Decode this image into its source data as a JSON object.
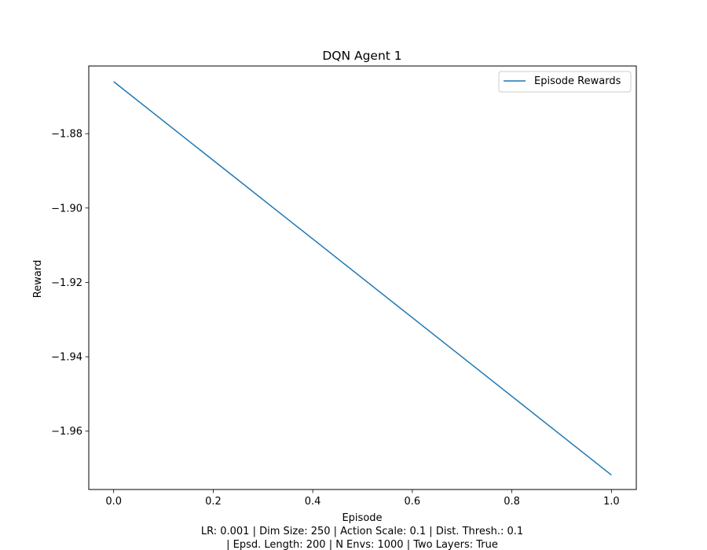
{
  "chart_data": {
    "type": "line",
    "title": "DQN Agent 1",
    "xlabel": "Episode",
    "ylabel": "Reward",
    "xlim": [
      -0.05,
      1.05
    ],
    "ylim": [
      -1.9757,
      -1.8618
    ],
    "x_ticks": [
      0.0,
      0.2,
      0.4,
      0.6,
      0.8,
      1.0
    ],
    "x_tick_labels": [
      "0.0",
      "0.2",
      "0.4",
      "0.6",
      "0.8",
      "1.0"
    ],
    "y_ticks": [
      -1.88,
      -1.9,
      -1.92,
      -1.94,
      -1.96
    ],
    "y_tick_labels": [
      "−1.88",
      "−1.90",
      "−1.92",
      "−1.94",
      "−1.96"
    ],
    "grid": false,
    "legend_position": "upper right",
    "series": [
      {
        "name": "Episode Rewards",
        "color": "#1f77b4",
        "x": [
          0.0,
          1.0
        ],
        "y": [
          -1.866,
          -1.9718
        ]
      }
    ],
    "caption_lines": [
      "LR: 0.001 | Dim Size: 250 | Action Scale: 0.1 | Dist. Thresh.: 0.1",
      "| Epsd. Length: 200 | N Envs: 1000 | Two Layers: True"
    ]
  }
}
